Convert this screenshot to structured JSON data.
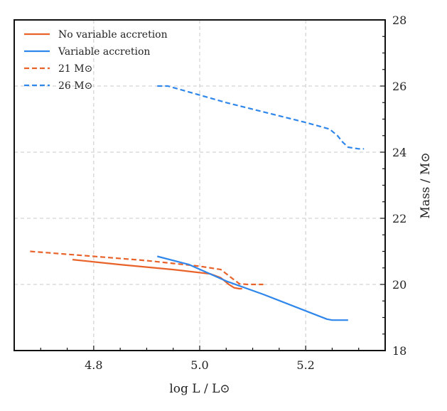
{
  "chart_data": {
    "type": "line",
    "xlabel": "log  L / L⊙",
    "ylabel": "Mass / M⊙",
    "xlim": [
      4.65,
      5.35
    ],
    "ylim": [
      18,
      28
    ],
    "x_ticks": [
      "4.8",
      "5.0",
      "5.2"
    ],
    "x_tick_values": [
      4.8,
      5.0,
      5.2
    ],
    "y_ticks": [
      "18",
      "20",
      "22",
      "24",
      "26",
      "28"
    ],
    "y_tick_values": [
      18,
      20,
      22,
      24,
      26,
      28
    ],
    "y_axis_side": "right",
    "grid": true,
    "legend_position": "top-left",
    "colors": {
      "no_variable": "#e8622a",
      "variable": "#2f86eb"
    },
    "legend": [
      {
        "label": "No variable accretion",
        "color": "#e8622a",
        "style": "solid"
      },
      {
        "label": "Variable accretion",
        "color": "#2f86eb",
        "style": "solid"
      },
      {
        "label": "21 M⊙",
        "color": "#e8622a",
        "style": "dashed"
      },
      {
        "label": "26 M⊙",
        "color": "#2f86eb",
        "style": "dashed"
      }
    ],
    "series": [
      {
        "color": "#e8622a",
        "style": "solid",
        "x": [
          4.76,
          4.85,
          4.95,
          5.02,
          5.04,
          5.055,
          5.065,
          5.075,
          5.08
        ],
        "y": [
          20.75,
          20.6,
          20.45,
          20.32,
          20.2,
          20.0,
          19.9,
          19.87,
          19.87
        ]
      },
      {
        "color": "#e8622a",
        "style": "dashed",
        "x": [
          4.68,
          4.8,
          4.9,
          5.0,
          5.04,
          5.06,
          5.075,
          5.09,
          5.12
        ],
        "y": [
          21.0,
          20.85,
          20.72,
          20.55,
          20.45,
          20.2,
          20.02,
          20.0,
          20.0
        ]
      },
      {
        "color": "#2f86eb",
        "style": "solid",
        "x": [
          4.92,
          4.98,
          5.05,
          5.12,
          5.2,
          5.24,
          5.25,
          5.28
        ],
        "y": [
          20.85,
          20.6,
          20.1,
          19.7,
          19.2,
          18.95,
          18.92,
          18.92
        ]
      },
      {
        "color": "#2f86eb",
        "style": "dashed",
        "x": [
          4.92,
          4.94,
          5.05,
          5.2,
          5.245,
          5.26,
          5.27,
          5.28,
          5.3,
          5.31
        ],
        "y": [
          26.0,
          26.0,
          25.5,
          24.9,
          24.7,
          24.5,
          24.3,
          24.15,
          24.1,
          24.1
        ]
      }
    ]
  }
}
